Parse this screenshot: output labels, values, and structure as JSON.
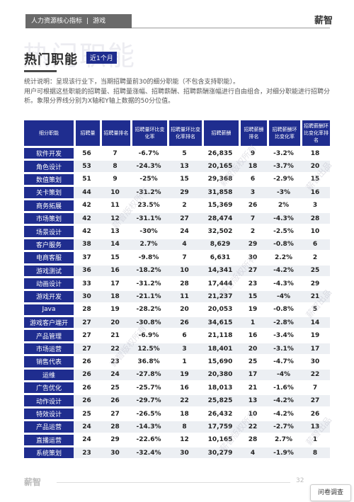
{
  "header": {
    "section": "人力资源核心指标",
    "separator": "|",
    "category": "游戏",
    "brand": "薪智"
  },
  "background_text": "热门职能",
  "page": {
    "title": "热门职能",
    "badge": "近1个月"
  },
  "description": {
    "line1": "统计说明：呈现该行业下，当期招聘量前30的细分职能（不包含支持职能）。",
    "line2": "用户可根据这些职能的招聘量、招聘量涨幅、招聘薪酬、招聘薪酬涨幅进行自由组合，对细分职能进行招聘分析。象限分界线分别为X轴和Y轴上数据的50分位值。"
  },
  "table": {
    "headers": [
      "细分职能",
      "招聘量",
      "招聘量排名",
      "招聘量环比变化率",
      "招聘量环比变化率排名",
      "招聘薪酬",
      "招聘薪酬排名",
      "招聘薪酬环比变化率",
      "招聘薪酬环比变化率排名"
    ],
    "rows": [
      [
        "软件开发",
        "56",
        "7",
        "-6.7%",
        "5",
        "26,835",
        "9",
        "-3.2%",
        "18"
      ],
      [
        "角色设计",
        "53",
        "8",
        "-24.3%",
        "13",
        "20,165",
        "18",
        "-3.7%",
        "20"
      ],
      [
        "数值策划",
        "51",
        "9",
        "-25%",
        "15",
        "29,368",
        "6",
        "-2.9%",
        "15"
      ],
      [
        "关卡策划",
        "44",
        "10",
        "-31.2%",
        "29",
        "31,858",
        "3",
        "-3%",
        "16"
      ],
      [
        "商务拓展",
        "42",
        "11",
        "23.5%",
        "2",
        "15,369",
        "26",
        "2%",
        "3"
      ],
      [
        "市场策划",
        "42",
        "12",
        "-31.1%",
        "27",
        "28,474",
        "7",
        "-4.3%",
        "28"
      ],
      [
        "场景设计",
        "42",
        "13",
        "-30%",
        "24",
        "32,502",
        "2",
        "-2.5%",
        "10"
      ],
      [
        "客户服务",
        "38",
        "14",
        "2.7%",
        "4",
        "8,629",
        "29",
        "-0.8%",
        "6"
      ],
      [
        "电商客服",
        "37",
        "15",
        "-9.8%",
        "7",
        "6,631",
        "30",
        "2.2%",
        "2"
      ],
      [
        "游戏测试",
        "36",
        "16",
        "-18.2%",
        "10",
        "14,341",
        "27",
        "-4.2%",
        "25"
      ],
      [
        "动画设计",
        "33",
        "17",
        "-31.2%",
        "28",
        "17,444",
        "23",
        "-4.3%",
        "29"
      ],
      [
        "游戏开发",
        "30",
        "18",
        "-21.1%",
        "11",
        "21,237",
        "15",
        "-4%",
        "21"
      ],
      [
        "Java",
        "28",
        "19",
        "-28.2%",
        "20",
        "20,053",
        "19",
        "-0.8%",
        "5"
      ],
      [
        "游戏客户端开",
        "27",
        "20",
        "-30.8%",
        "26",
        "34,615",
        "1",
        "-2.8%",
        "14"
      ],
      [
        "产品管理",
        "27",
        "21",
        "-6.9%",
        "6",
        "21,118",
        "16",
        "-3.4%",
        "19"
      ],
      [
        "市场运营",
        "27",
        "22",
        "12.5%",
        "3",
        "18,401",
        "20",
        "-3.1%",
        "17"
      ],
      [
        "销售代表",
        "26",
        "23",
        "36.8%",
        "1",
        "15,690",
        "25",
        "-4.7%",
        "30"
      ],
      [
        "运维",
        "26",
        "24",
        "-27.8%",
        "19",
        "20,380",
        "17",
        "-4%",
        "22"
      ],
      [
        "广告优化",
        "26",
        "25",
        "-25.7%",
        "16",
        "18,013",
        "21",
        "-1.6%",
        "7"
      ],
      [
        "动作设计",
        "26",
        "26",
        "-29.7%",
        "22",
        "25,825",
        "13",
        "-4.2%",
        "27"
      ],
      [
        "特效设计",
        "25",
        "27",
        "-26.5%",
        "18",
        "26,432",
        "10",
        "-4.2%",
        "26"
      ],
      [
        "产品运营",
        "24",
        "28",
        "-14.3%",
        "8",
        "17,759",
        "22",
        "-2.7%",
        "13"
      ],
      [
        "直播运营",
        "24",
        "29",
        "-22.6%",
        "12",
        "10,165",
        "28",
        "2.7%",
        "1"
      ],
      [
        "系统策划",
        "23",
        "30",
        "-32.4%",
        "30",
        "30,279",
        "4",
        "-1.9%",
        "8"
      ]
    ]
  },
  "watermark_text": "薪智版权所有",
  "watermark_text_2": "薪智出品",
  "footer": {
    "brand": "薪智",
    "page_number": "32"
  },
  "survey_button": "问卷调查"
}
